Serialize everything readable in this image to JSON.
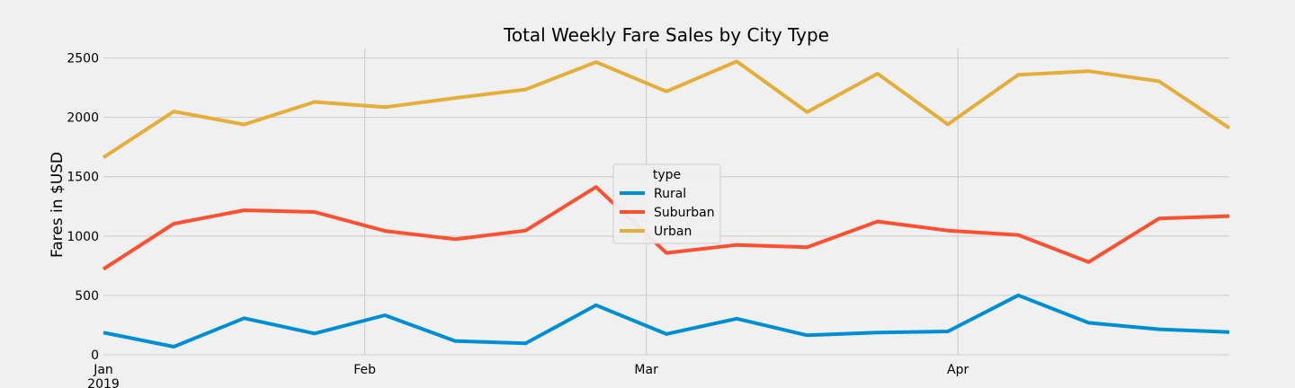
{
  "chart_data": {
    "type": "line",
    "title": "Total Weekly Fare Sales by City Type",
    "xlabel": "",
    "ylabel": "Fares in $USD",
    "ylim": [
      0,
      2580
    ],
    "yticks": [
      0,
      500,
      1000,
      1500,
      2000,
      2500
    ],
    "x": [
      "2019-01-06",
      "2019-01-13",
      "2019-01-20",
      "2019-01-27",
      "2019-02-03",
      "2019-02-10",
      "2019-02-17",
      "2019-02-24",
      "2019-03-03",
      "2019-03-10",
      "2019-03-17",
      "2019-03-24",
      "2019-03-31",
      "2019-04-07",
      "2019-04-14",
      "2019-04-21",
      "2019-04-28"
    ],
    "xtick_labels": [
      {
        "label": "Jan",
        "sublabel": "2019",
        "index": 0
      },
      {
        "label": "Feb",
        "sublabel": "",
        "index": 4
      },
      {
        "label": "Mar",
        "sublabel": "",
        "index": 8
      },
      {
        "label": "Apr",
        "sublabel": "",
        "index": 13
      }
    ],
    "series": [
      {
        "name": "Rural",
        "color": "#008fd5",
        "values": [
          187,
          68,
          308,
          179,
          333,
          116,
          97,
          418,
          175,
          304,
          164,
          187,
          197,
          501,
          269,
          215,
          191
        ]
      },
      {
        "name": "Suburban",
        "color": "#fc4f30",
        "values": [
          722,
          1104,
          1217,
          1203,
          1043,
          974,
          1046,
          1413,
          858,
          925,
          906,
          1123,
          1046,
          1009,
          781,
          1148,
          1168
        ]
      },
      {
        "name": "Urban",
        "color": "#e5ae38",
        "values": [
          1662,
          2050,
          1940,
          2130,
          2086,
          2163,
          2235,
          2466,
          2218,
          2471,
          2044,
          2368,
          1941,
          2358,
          2389,
          2304,
          1910
        ]
      }
    ],
    "legend": {
      "title": "type",
      "position": "center"
    },
    "grid": true
  }
}
